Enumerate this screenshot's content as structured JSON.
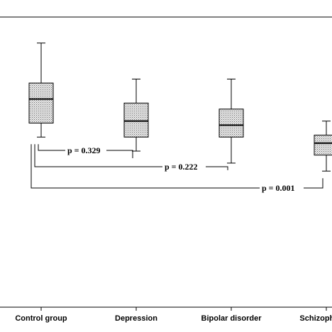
{
  "chart_data": {
    "type": "boxplot",
    "categories": [
      "Control group",
      "Depression",
      "Bipolar disorder",
      "Schizophrenia"
    ],
    "boxes": [
      {
        "whisker_low": 0.4,
        "q1": 0.47,
        "median": 0.59,
        "q3": 0.67,
        "whisker_high": 0.87
      },
      {
        "whisker_low": 0.33,
        "q1": 0.4,
        "median": 0.48,
        "q3": 0.57,
        "whisker_high": 0.69
      },
      {
        "whisker_low": 0.27,
        "q1": 0.4,
        "median": 0.46,
        "q3": 0.54,
        "whisker_high": 0.69
      },
      {
        "whisker_low": 0.23,
        "q1": 0.31,
        "median": 0.37,
        "q3": 0.41,
        "whisker_high": 0.48
      }
    ],
    "comparisons": [
      {
        "from": "Control group",
        "to": "Depression",
        "label": "p = 0.329"
      },
      {
        "from": "Control group",
        "to": "Bipolar disorder",
        "label": "p = 0.222"
      },
      {
        "from": "Control group",
        "to": "Schizophrenia",
        "label": "p = 0.001"
      }
    ],
    "ylim": [
      -0.45,
      1.0
    ],
    "grid": false,
    "box_fill": "#c8c8c8"
  }
}
